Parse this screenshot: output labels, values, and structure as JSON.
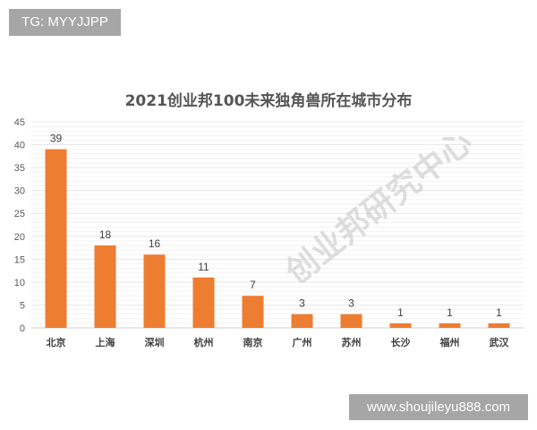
{
  "header_tag": "TG: MYYJJPP",
  "footer_site": "www.shoujileyu888.com",
  "watermark": "创业邦研究中心",
  "colors": {
    "bar": "#ED7D31",
    "grid": "#e8e8e8",
    "text": "#555555"
  },
  "chart_data": {
    "type": "bar",
    "title": "2021创业邦100未来独角兽所在城市分布",
    "xlabel": "",
    "ylabel": "",
    "categories": [
      "北京",
      "上海",
      "深圳",
      "杭州",
      "南京",
      "广州",
      "苏州",
      "长沙",
      "福州",
      "武汉"
    ],
    "values": [
      39,
      18,
      16,
      11,
      7,
      3,
      3,
      1,
      1,
      1
    ],
    "ylim": [
      0,
      45
    ],
    "yticks": [
      0,
      5,
      10,
      15,
      20,
      25,
      30,
      35,
      40,
      45
    ],
    "grid": true,
    "legend": "none",
    "data_labels": true
  }
}
